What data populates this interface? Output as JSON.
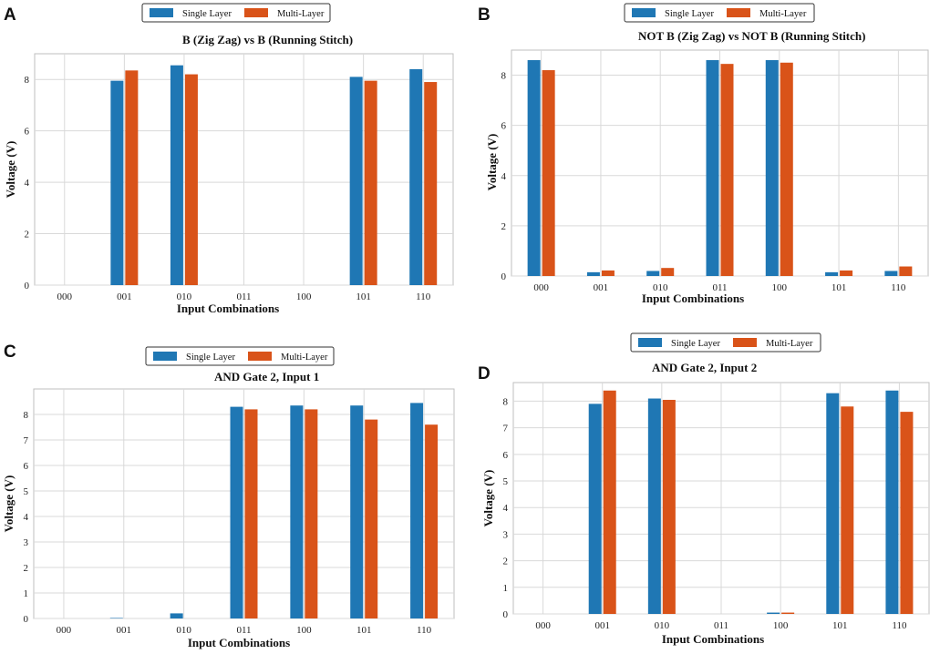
{
  "colors": {
    "single": "#1f77b4",
    "multi": "#d95319"
  },
  "chart_data": [
    {
      "panel": "A",
      "type": "bar",
      "title": "B (Zig Zag) vs B (Running Stitch)",
      "xlabel": "Input Combinations",
      "ylabel": "Voltage (V)",
      "ylim": [
        0,
        9
      ],
      "yticks": [
        0,
        2,
        4,
        6,
        8
      ],
      "grid": true,
      "legend_position": "top-center",
      "categories": [
        "000",
        "001",
        "010",
        "011",
        "100",
        "101",
        "110"
      ],
      "series": [
        {
          "name": "Single Layer",
          "values": [
            0,
            7.95,
            8.55,
            0,
            0,
            8.1,
            8.4
          ]
        },
        {
          "name": "Multi-Layer",
          "values": [
            0,
            8.35,
            8.2,
            0,
            0,
            7.95,
            7.9
          ]
        }
      ]
    },
    {
      "panel": "B",
      "type": "bar",
      "title": "NOT B (Zig Zag) vs NOT B (Running Stitch)",
      "xlabel": "Input Combinations",
      "ylabel": "Voltage (V)",
      "ylim": [
        0,
        9
      ],
      "yticks": [
        0,
        2,
        4,
        6,
        8
      ],
      "grid": true,
      "legend_position": "top-center",
      "categories": [
        "000",
        "001",
        "010",
        "011",
        "100",
        "101",
        "110"
      ],
      "series": [
        {
          "name": "Single Layer",
          "values": [
            8.6,
            0.15,
            0.2,
            8.6,
            8.6,
            0.15,
            0.2
          ]
        },
        {
          "name": "Multi-Layer",
          "values": [
            8.2,
            0.22,
            0.32,
            8.45,
            8.5,
            0.22,
            0.38
          ]
        }
      ]
    },
    {
      "panel": "C",
      "type": "bar",
      "title": "AND Gate 2, Input 1",
      "xlabel": "Input Combinations",
      "ylabel": "Voltage (V)",
      "ylim": [
        0,
        9
      ],
      "yticks": [
        0,
        1,
        2,
        3,
        4,
        5,
        6,
        7,
        8
      ],
      "grid": true,
      "legend_position": "top-center",
      "categories": [
        "000",
        "001",
        "010",
        "011",
        "100",
        "101",
        "110"
      ],
      "series": [
        {
          "name": "Single Layer",
          "values": [
            0,
            0.02,
            0.2,
            8.3,
            8.35,
            8.35,
            8.45
          ]
        },
        {
          "name": "Multi-Layer",
          "values": [
            0,
            0,
            0,
            8.2,
            8.2,
            7.8,
            7.6
          ]
        }
      ]
    },
    {
      "panel": "D",
      "type": "bar",
      "title": "AND Gate 2, Input 2",
      "xlabel": "Input Combinations",
      "ylabel": "Voltage (V)",
      "ylim": [
        0,
        8.7
      ],
      "yticks": [
        0,
        1,
        2,
        3,
        4,
        5,
        6,
        7,
        8
      ],
      "grid": true,
      "legend_position": "top-center",
      "categories": [
        "000",
        "001",
        "010",
        "011",
        "100",
        "101",
        "110"
      ],
      "series": [
        {
          "name": "Single Layer",
          "values": [
            0,
            7.9,
            8.1,
            0,
            0.05,
            8.3,
            8.4
          ]
        },
        {
          "name": "Multi-Layer",
          "values": [
            0,
            8.4,
            8.05,
            0,
            0.05,
            7.8,
            7.6
          ]
        }
      ]
    }
  ]
}
